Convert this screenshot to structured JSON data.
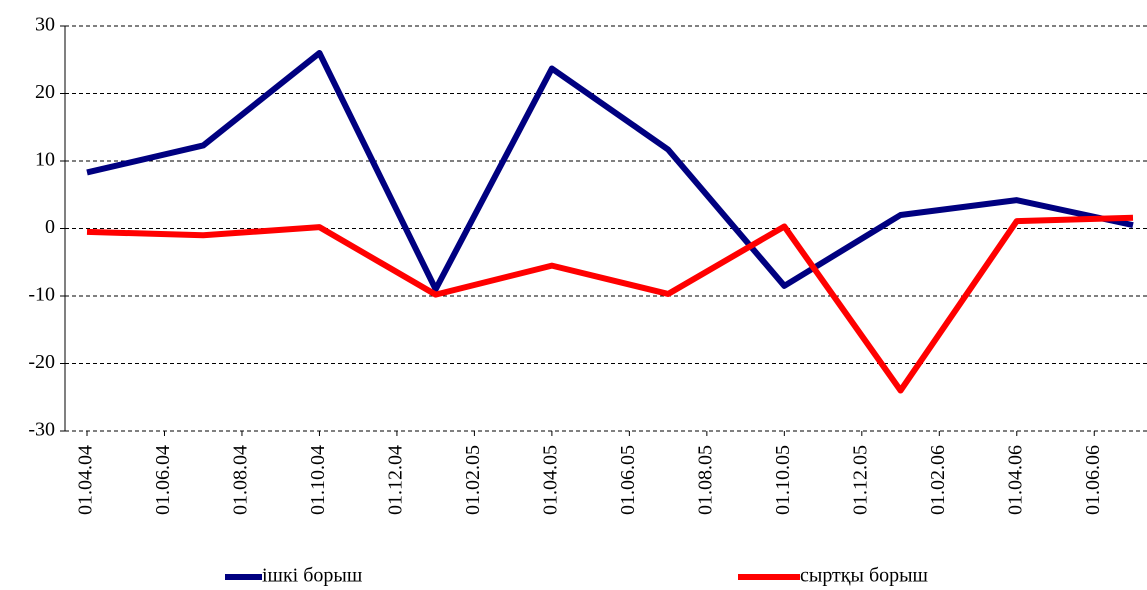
{
  "chart_data": {
    "type": "line",
    "x": [
      "01.04.04",
      "01.07.04",
      "01.10.04",
      "01.01.05",
      "01.04.05",
      "01.07.05",
      "01.10.05",
      "01.01.06",
      "01.04.06",
      "01.07.06"
    ],
    "xticks": [
      "01.04.04",
      "01.06.04",
      "01.08.04",
      "01.10.04",
      "01.12.04",
      "01.02.05",
      "01.04.05",
      "01.06.05",
      "01.08.05",
      "01.10.05",
      "01.12.05",
      "01.02.06",
      "01.04.06",
      "01.06.06"
    ],
    "series": [
      {
        "name": "ішкі борыш",
        "color": "#000080",
        "values": [
          8.3,
          12.3,
          26,
          -9,
          23.7,
          11.7,
          -8.5,
          2,
          4.2,
          0.5
        ]
      },
      {
        "name": "сыртқы борыш",
        "color": "#ff0000",
        "values": [
          -0.5,
          -1,
          0.2,
          -9.8,
          -5.5,
          -9.7,
          0.3,
          -24,
          1.1,
          1.6
        ]
      }
    ],
    "ylim": [
      -30,
      30
    ],
    "yticks": [
      -30,
      -20,
      -10,
      0,
      10,
      20,
      30
    ],
    "grid": true
  }
}
